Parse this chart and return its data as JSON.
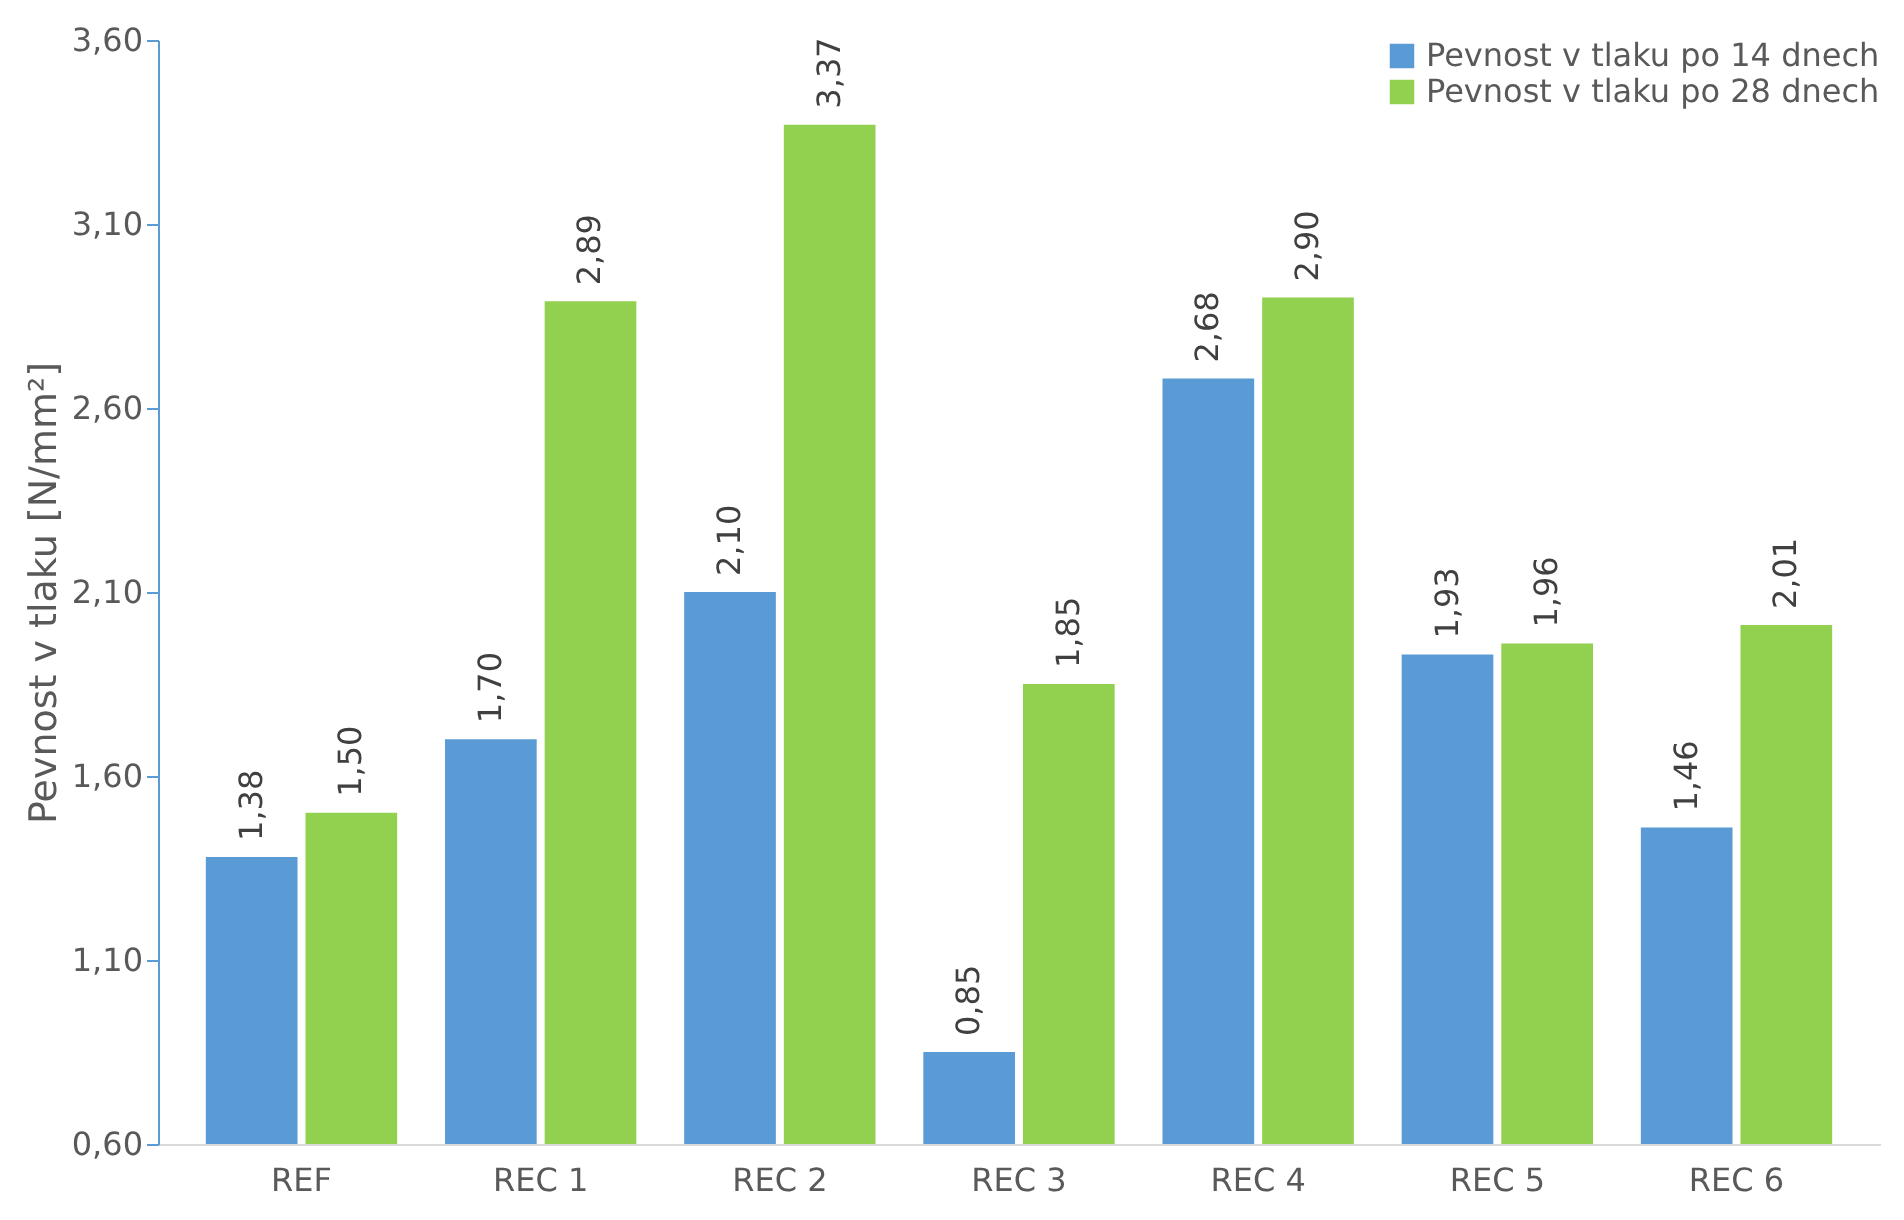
{
  "chart_data": {
    "type": "bar",
    "ylabel": "Pevnost v tlaku [N/mm²]",
    "categories": [
      "REF",
      "REC 1",
      "REC 2",
      "REC 3",
      "REC 4",
      "REC 5",
      "REC 6"
    ],
    "series": [
      {
        "name": "Pevnost v tlaku po 14 dnech",
        "color": "#5b9bd5",
        "values": [
          1.38,
          1.7,
          2.1,
          0.85,
          2.68,
          1.93,
          1.46
        ],
        "value_labels": [
          "1,38",
          "1,70",
          "2,10",
          "0,85",
          "2,68",
          "1,93",
          "1,46"
        ]
      },
      {
        "name": "Pevnost v tlaku po 28 dnech",
        "color": "#92d050",
        "values": [
          1.5,
          2.89,
          3.37,
          1.85,
          2.9,
          1.96,
          2.01
        ],
        "value_labels": [
          "1,50",
          "2,89",
          "3,37",
          "1,85",
          "2,90",
          "1,96",
          "2,01"
        ]
      }
    ],
    "ylim": [
      0.6,
      3.6
    ],
    "yticks": [
      {
        "value": 0.6,
        "label": "0,60"
      },
      {
        "value": 1.1,
        "label": "1,10"
      },
      {
        "value": 1.6,
        "label": "1,60"
      },
      {
        "value": 2.1,
        "label": "2,10"
      },
      {
        "value": 2.6,
        "label": "2,60"
      },
      {
        "value": 3.1,
        "label": "3,10"
      },
      {
        "value": 3.6,
        "label": "3,60"
      }
    ],
    "grid": false,
    "legend": "top right"
  }
}
